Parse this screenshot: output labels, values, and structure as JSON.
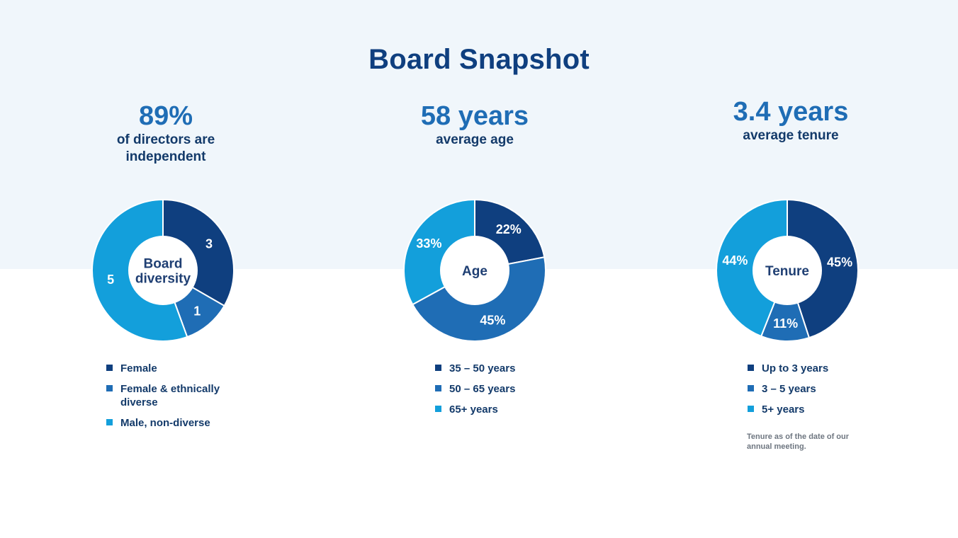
{
  "page": {
    "title": "Board Snapshot"
  },
  "colors": {
    "dark": "#0f3f7f",
    "medium": "#1f6db5",
    "light": "#139fdb",
    "background_band": "#f0f6fb"
  },
  "stats": [
    {
      "value": "89%",
      "caption": "of directors are independent"
    },
    {
      "value": "58 years",
      "caption": "average age"
    },
    {
      "value": "3.4 years",
      "caption": "average tenure"
    }
  ],
  "chart_data": [
    {
      "type": "pie",
      "center_label": [
        "Board",
        "diversity"
      ],
      "categories": [
        "Female",
        "Female & ethnically diverse",
        "Male, non-diverse"
      ],
      "values": [
        3,
        1,
        5
      ],
      "value_labels": [
        "3",
        "1",
        "5"
      ],
      "colors": [
        "#0f3f7f",
        "#1f6db5",
        "#139fdb"
      ],
      "legend": [
        "Female",
        "Female & ethnically diverse",
        "Male, non-diverse"
      ]
    },
    {
      "type": "pie",
      "center_label": [
        "Age"
      ],
      "categories": [
        "35 – 50 years",
        "50 – 65 years",
        "65+ years"
      ],
      "values": [
        22,
        45,
        33
      ],
      "value_labels": [
        "22%",
        "45%",
        "33%"
      ],
      "colors": [
        "#0f3f7f",
        "#1f6db5",
        "#139fdb"
      ],
      "legend": [
        "35 – 50 years",
        "50 – 65 years",
        "65+ years"
      ]
    },
    {
      "type": "pie",
      "center_label": [
        "Tenure"
      ],
      "categories": [
        "Up to 3 years",
        "3 – 5 years",
        "5+ years"
      ],
      "values": [
        45,
        11,
        44
      ],
      "value_labels": [
        "45%",
        "11%",
        "44%"
      ],
      "colors": [
        "#0f3f7f",
        "#1f6db5",
        "#139fdb"
      ],
      "legend": [
        "Up to 3 years",
        "3 – 5 years",
        "5+ years"
      ]
    }
  ],
  "footnote": "Tenure as of the date of our annual meeting."
}
